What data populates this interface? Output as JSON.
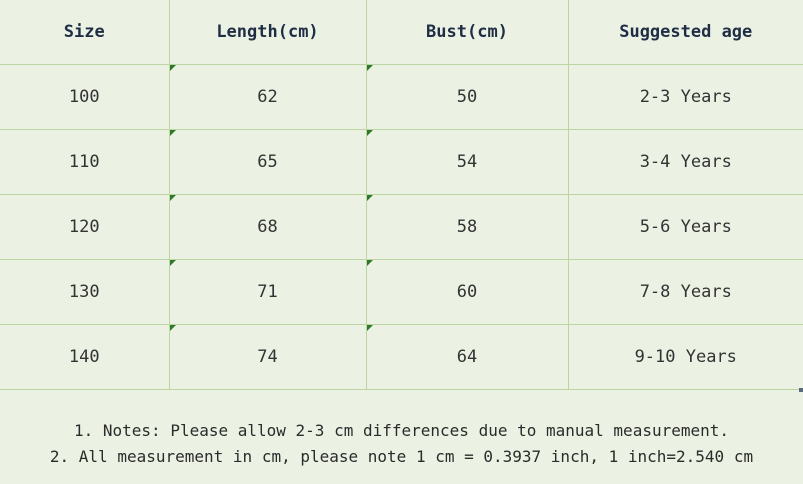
{
  "table": {
    "headers": [
      "Size",
      "Length(cm)",
      "Bust(cm)",
      "Suggested age"
    ],
    "rows": [
      [
        "100",
        "62",
        "50",
        "2-3 Years"
      ],
      [
        "110",
        "65",
        "54",
        "3-4 Years"
      ],
      [
        "120",
        "68",
        "58",
        "5-6 Years"
      ],
      [
        "130",
        "71",
        "60",
        "7-8 Years"
      ],
      [
        "140",
        "74",
        "64",
        "9-10 Years"
      ]
    ]
  },
  "notes": {
    "line1": "1. Notes: Please allow 2-3 cm differences due to manual measurement.",
    "line2": "2. All measurement in cm, please note 1 cm = 0.3937 inch, 1 inch=2.540 cm"
  },
  "colors": {
    "background": "#ebf2e3",
    "grid": "#bcd5a2",
    "header_text": "#1f2d45",
    "cell_marker": "#2f7a2a"
  }
}
